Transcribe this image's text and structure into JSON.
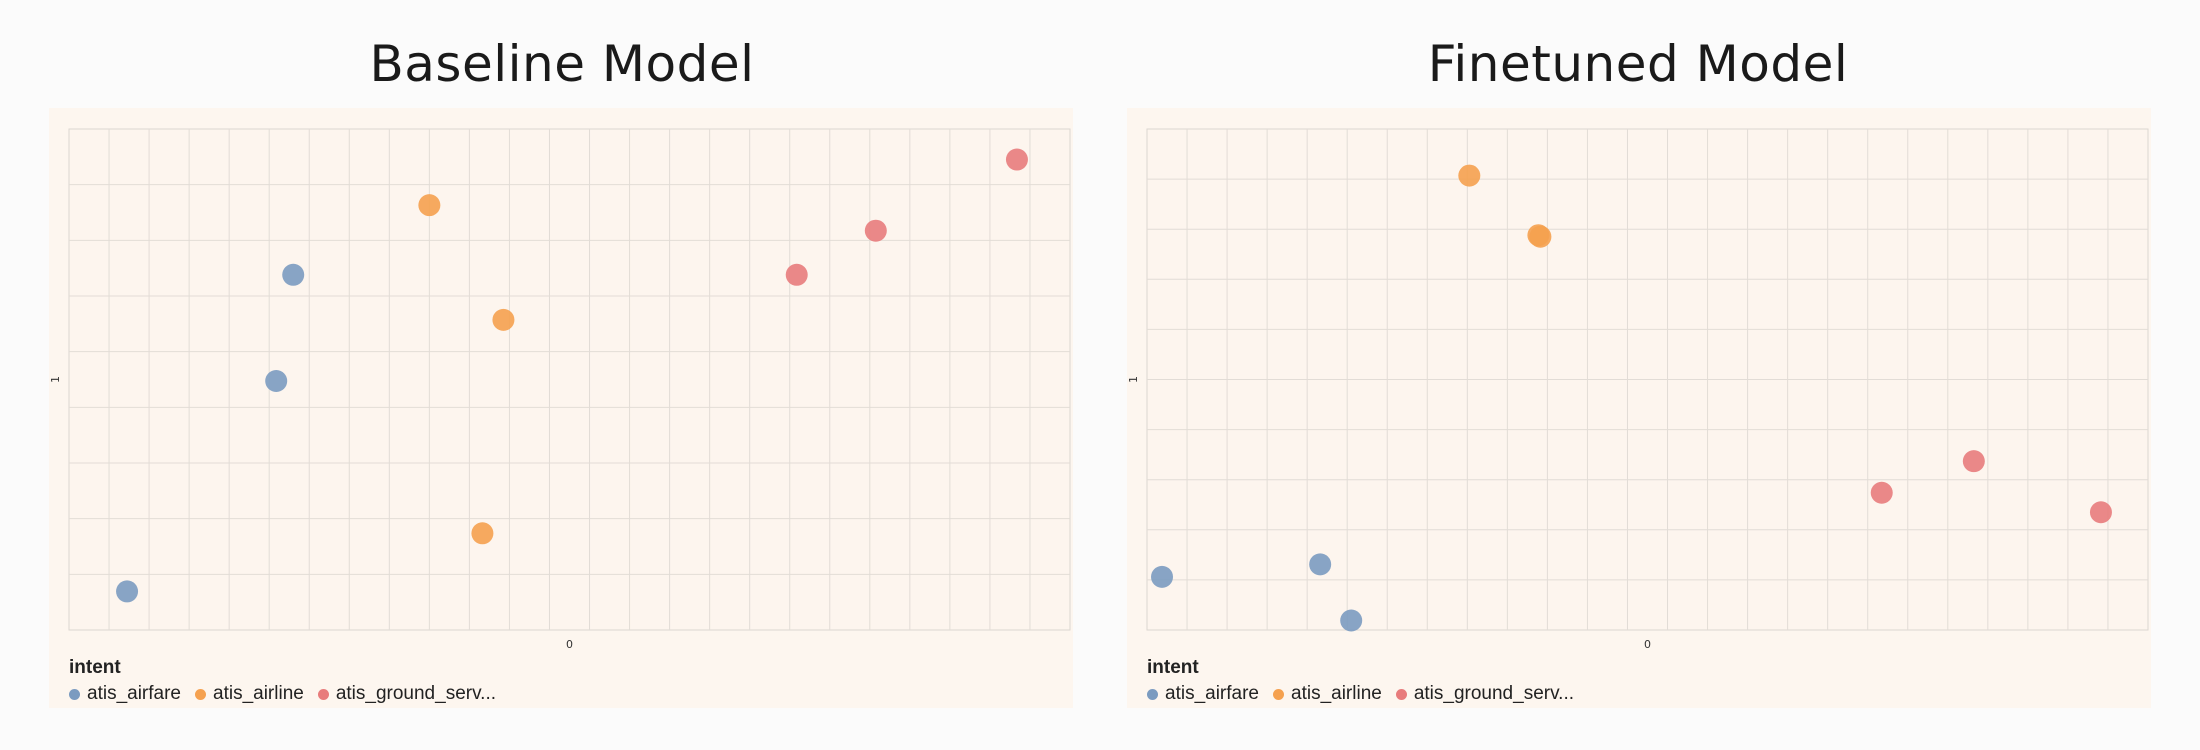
{
  "colors": {
    "atis_airfare": "#7b9bc0",
    "atis_airline": "#f5a14f",
    "atis_ground_service": "#e87c7c"
  },
  "chart_data": [
    {
      "type": "scatter",
      "title": "Baseline Model",
      "x_tick_label": "0",
      "y_tick_label": "1",
      "xlim": [
        0,
        1
      ],
      "ylim": [
        0,
        1
      ],
      "grid": true,
      "legend": {
        "title": "intent",
        "placement": "bottom-left",
        "items": [
          {
            "key": "atis_airfare",
            "label": "atis_airfare"
          },
          {
            "key": "atis_airline",
            "label": "atis_airline"
          },
          {
            "key": "atis_ground_service",
            "label": "atis_ground_serv..."
          }
        ]
      },
      "points": [
        {
          "x": 0.058,
          "y": 0.077,
          "intent": "atis_airfare"
        },
        {
          "x": 0.207,
          "y": 0.497,
          "intent": "atis_airfare"
        },
        {
          "x": 0.224,
          "y": 0.709,
          "intent": "atis_airfare"
        },
        {
          "x": 0.36,
          "y": 0.848,
          "intent": "atis_airline"
        },
        {
          "x": 0.434,
          "y": 0.619,
          "intent": "atis_airline"
        },
        {
          "x": 0.413,
          "y": 0.193,
          "intent": "atis_airline"
        },
        {
          "x": 0.727,
          "y": 0.709,
          "intent": "atis_ground_service"
        },
        {
          "x": 0.806,
          "y": 0.797,
          "intent": "atis_ground_service"
        },
        {
          "x": 0.947,
          "y": 0.939,
          "intent": "atis_ground_service"
        }
      ]
    },
    {
      "type": "scatter",
      "title": "Finetuned Model",
      "x_tick_label": "0",
      "y_tick_label": "1",
      "xlim": [
        0,
        1
      ],
      "ylim": [
        0,
        1
      ],
      "grid": true,
      "legend": {
        "title": "intent",
        "placement": "bottom-left",
        "items": [
          {
            "key": "atis_airfare",
            "label": "atis_airfare"
          },
          {
            "key": "atis_airline",
            "label": "atis_airline"
          },
          {
            "key": "atis_ground_service",
            "label": "atis_ground_serv..."
          }
        ]
      },
      "points": [
        {
          "x": 0.015,
          "y": 0.106,
          "intent": "atis_airfare"
        },
        {
          "x": 0.173,
          "y": 0.131,
          "intent": "atis_airfare"
        },
        {
          "x": 0.204,
          "y": 0.019,
          "intent": "atis_airfare"
        },
        {
          "x": 0.322,
          "y": 0.907,
          "intent": "atis_airline"
        },
        {
          "x": 0.391,
          "y": 0.788,
          "intent": "atis_airline"
        },
        {
          "x": 0.393,
          "y": 0.785,
          "intent": "atis_airline"
        },
        {
          "x": 0.734,
          "y": 0.274,
          "intent": "atis_ground_service"
        },
        {
          "x": 0.826,
          "y": 0.337,
          "intent": "atis_ground_service"
        },
        {
          "x": 0.953,
          "y": 0.235,
          "intent": "atis_ground_service"
        }
      ]
    }
  ]
}
